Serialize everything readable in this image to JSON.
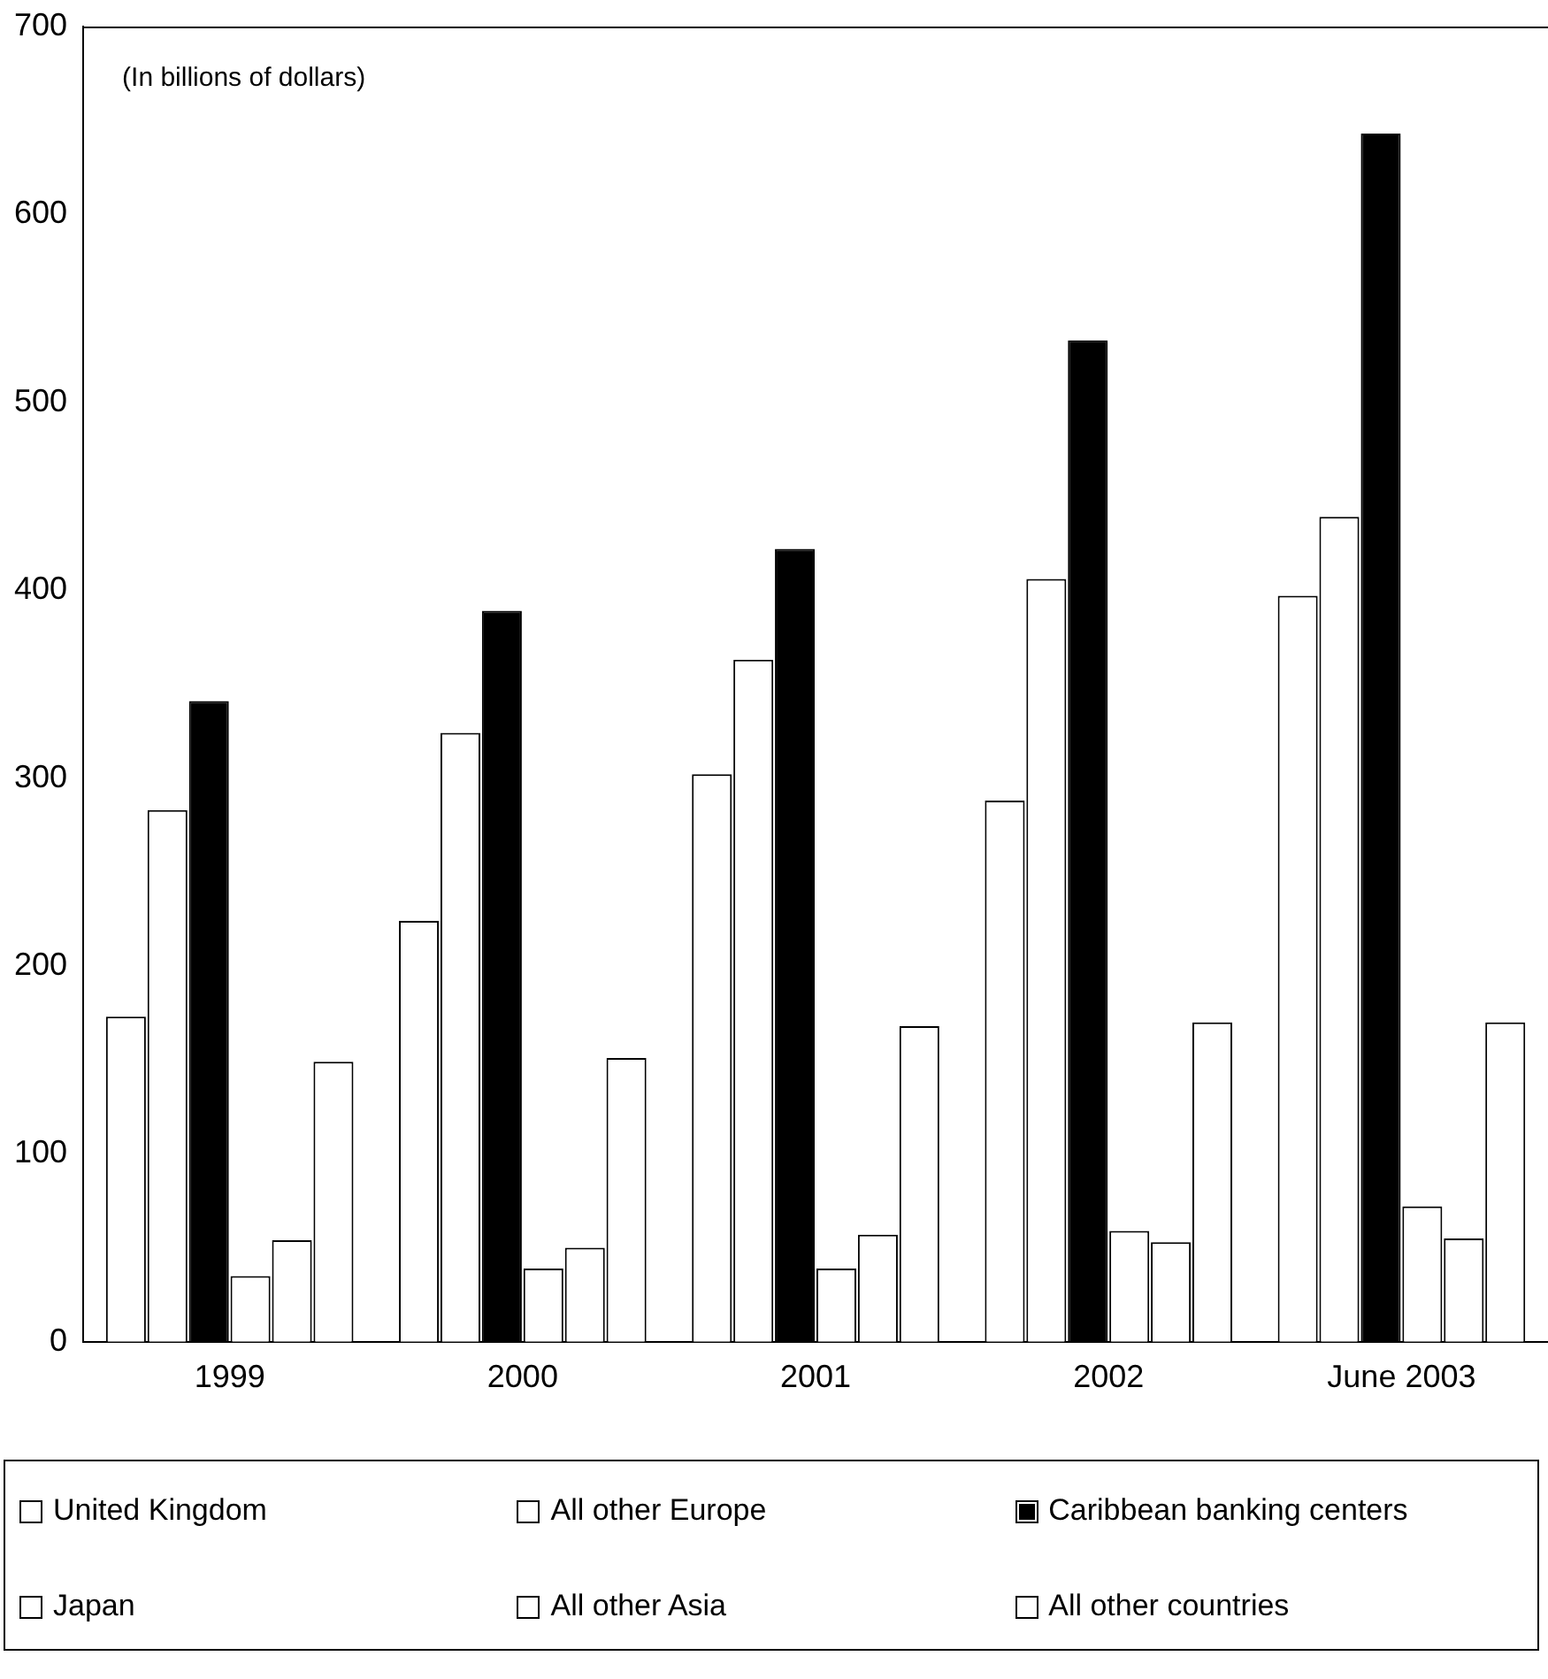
{
  "chart_data": {
    "type": "bar",
    "annotations": [
      "(In billions of dollars)"
    ],
    "categories": [
      "1999",
      "2000",
      "2001",
      "2002",
      "June 2003"
    ],
    "series": [
      {
        "name": "United Kingdom",
        "color": "#ffffff",
        "values": [
          173,
          224,
          302,
          288,
          397
        ]
      },
      {
        "name": "All other Europe",
        "color": "#ffffff",
        "values": [
          283,
          324,
          363,
          406,
          439
        ]
      },
      {
        "name": "Caribbean banking centers",
        "color": "#000000",
        "values": [
          341,
          389,
          422,
          533,
          643
        ]
      },
      {
        "name": "Japan",
        "color": "#ffffff",
        "values": [
          35,
          39,
          39,
          59,
          72
        ]
      },
      {
        "name": "All other Asia",
        "color": "#ffffff",
        "values": [
          54,
          50,
          57,
          53,
          55
        ]
      },
      {
        "name": "All other countries",
        "color": "#ffffff",
        "values": [
          149,
          151,
          168,
          170,
          170
        ]
      }
    ],
    "ylim": [
      0,
      700
    ],
    "yticks": [
      0,
      100,
      200,
      300,
      400,
      500,
      600,
      700
    ],
    "grid": false,
    "legend": "bottom"
  }
}
